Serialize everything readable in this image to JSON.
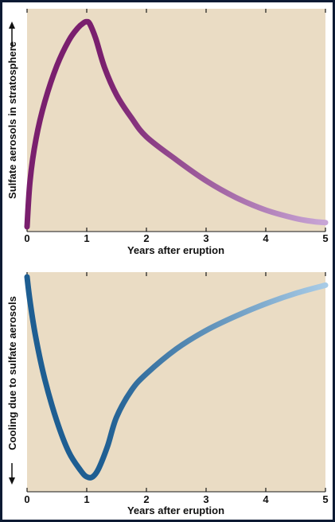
{
  "colors": {
    "page_background": "#0c1a33",
    "panel_background": "#ffffff",
    "plot_background": "#eadcc4",
    "axis": "#1a1a1a"
  },
  "chart_data": [
    {
      "type": "line",
      "xlabel": "Years after eruption",
      "ylabel": "Sulfate aerosols in stratosphere",
      "ylabel_arrow": "up",
      "xlim": [
        0,
        5
      ],
      "ylim": [
        0,
        1
      ],
      "y_ticks_shown": false,
      "x_ticks": [
        "0",
        "1",
        "2",
        "3",
        "4",
        "5"
      ],
      "grid": false,
      "series": [
        {
          "color_start": "#7a1f6e",
          "color_end": "#c8a6d6",
          "x": [
            0,
            0.05,
            0.15,
            0.3,
            0.5,
            0.7,
            0.85,
            0.95,
            1.0,
            1.05,
            1.15,
            1.3,
            1.5,
            1.75,
            2.0,
            2.5,
            3.0,
            3.5,
            4.0,
            4.5,
            4.8,
            5.0
          ],
          "y": [
            0.0,
            0.22,
            0.42,
            0.6,
            0.77,
            0.89,
            0.95,
            0.975,
            0.98,
            0.97,
            0.9,
            0.76,
            0.63,
            0.52,
            0.43,
            0.32,
            0.22,
            0.14,
            0.08,
            0.04,
            0.025,
            0.02
          ]
        }
      ]
    },
    {
      "type": "line",
      "xlabel": "Years after eruption",
      "ylabel": "Cooling due to sulfate aerosols",
      "ylabel_arrow": "down",
      "xlim": [
        0,
        5
      ],
      "ylim": [
        0,
        1
      ],
      "y_ticks_shown": false,
      "x_ticks": [
        "0",
        "1",
        "2",
        "3",
        "4",
        "5"
      ],
      "grid": false,
      "series": [
        {
          "color_start": "#1e5e92",
          "color_end": "#a8cbe6",
          "x": [
            0,
            0.05,
            0.15,
            0.3,
            0.5,
            0.7,
            0.9,
            1.0,
            1.1,
            1.2,
            1.35,
            1.5,
            1.75,
            2.0,
            2.5,
            3.0,
            3.5,
            4.0,
            4.5,
            5.0
          ],
          "y": [
            1.0,
            0.88,
            0.7,
            0.5,
            0.3,
            0.15,
            0.06,
            0.03,
            0.03,
            0.07,
            0.18,
            0.32,
            0.45,
            0.53,
            0.65,
            0.74,
            0.81,
            0.87,
            0.92,
            0.96
          ]
        }
      ]
    }
  ]
}
